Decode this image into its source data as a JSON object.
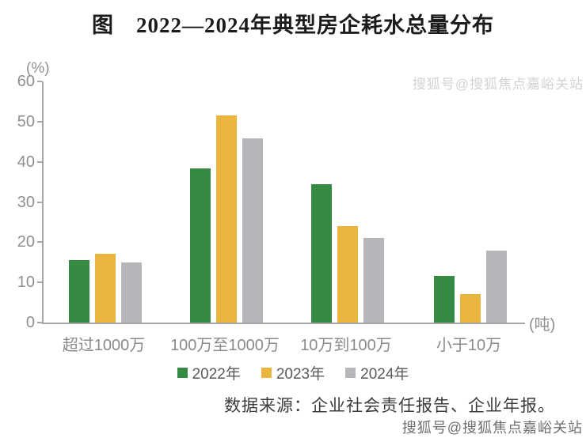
{
  "title": "图　2022—2024年典型房企耗水总量分布",
  "watermark_top": "搜狐号@搜狐焦点嘉峪关站",
  "watermark_bottom": "搜狐号@搜狐焦点嘉峪关站",
  "source": "数据来源：企业社会责任报告、企业年报。",
  "chart_data": {
    "type": "bar",
    "title": "图　2022—2024年典型房企耗水总量分布",
    "xlabel": "",
    "ylabel": "(%)",
    "x_unit": "(吨)",
    "y_unit": "(%)",
    "categories": [
      "超过1000万",
      "100万至1000万",
      "10万到100万",
      "小于10万"
    ],
    "series": [
      {
        "name": "2022年",
        "color": "#378a44",
        "values": [
          15.5,
          38.3,
          34.5,
          11.6
        ]
      },
      {
        "name": "2023年",
        "color": "#e9b53d",
        "values": [
          17.2,
          51.5,
          24.1,
          7.0
        ]
      },
      {
        "name": "2024年",
        "color": "#b5b5ba",
        "values": [
          15.0,
          45.8,
          21.0,
          17.9
        ]
      }
    ],
    "ylim": [
      0,
      60
    ],
    "yticks": [
      0,
      10,
      20,
      30,
      40,
      50,
      60
    ],
    "grid": false,
    "legend_position": "bottom"
  },
  "colors": {
    "axis": "#a6a6a6",
    "tick_text": "#8f8f8f",
    "category_text": "#8a8a8a",
    "legend_text": "#5a5a5a",
    "source_text": "#3c3c3c",
    "title_text": "#1c1c1c",
    "watermark_top": "#d2d2d2",
    "watermark_bottom": "#6f6f6f"
  }
}
